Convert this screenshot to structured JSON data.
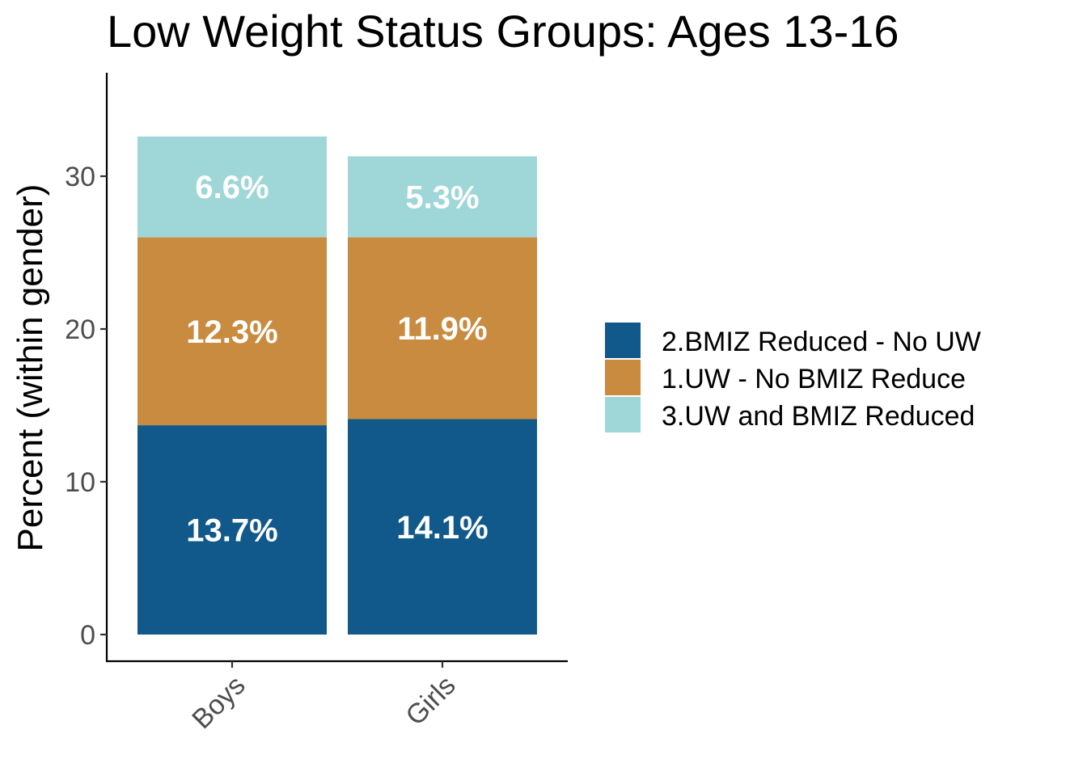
{
  "chart_data": {
    "type": "bar",
    "stacked": true,
    "title": "Low Weight Status Groups: Ages 13-16",
    "xlabel": "",
    "ylabel": "Percent (within gender)",
    "categories": [
      "Boys",
      "Girls"
    ],
    "ylim": [
      -1.5,
      36.5
    ],
    "yticks": [
      0,
      10,
      20,
      30
    ],
    "grid": false,
    "legend_position": "right",
    "series": [
      {
        "name": "2.BMIZ Reduced - No UW",
        "values": [
          13.7,
          14.1
        ],
        "labels": [
          "13.7%",
          "14.1%"
        ],
        "color": "#11598a"
      },
      {
        "name": "1.UW - No BMIZ Reduce",
        "values": [
          12.3,
          11.9
        ],
        "labels": [
          "12.3%",
          "11.9%"
        ],
        "color": "#c98b3f"
      },
      {
        "name": "3.UW and BMIZ Reduced",
        "values": [
          6.6,
          5.3
        ],
        "labels": [
          "6.6%",
          "5.3%"
        ],
        "color": "#9fd6d8"
      }
    ]
  }
}
